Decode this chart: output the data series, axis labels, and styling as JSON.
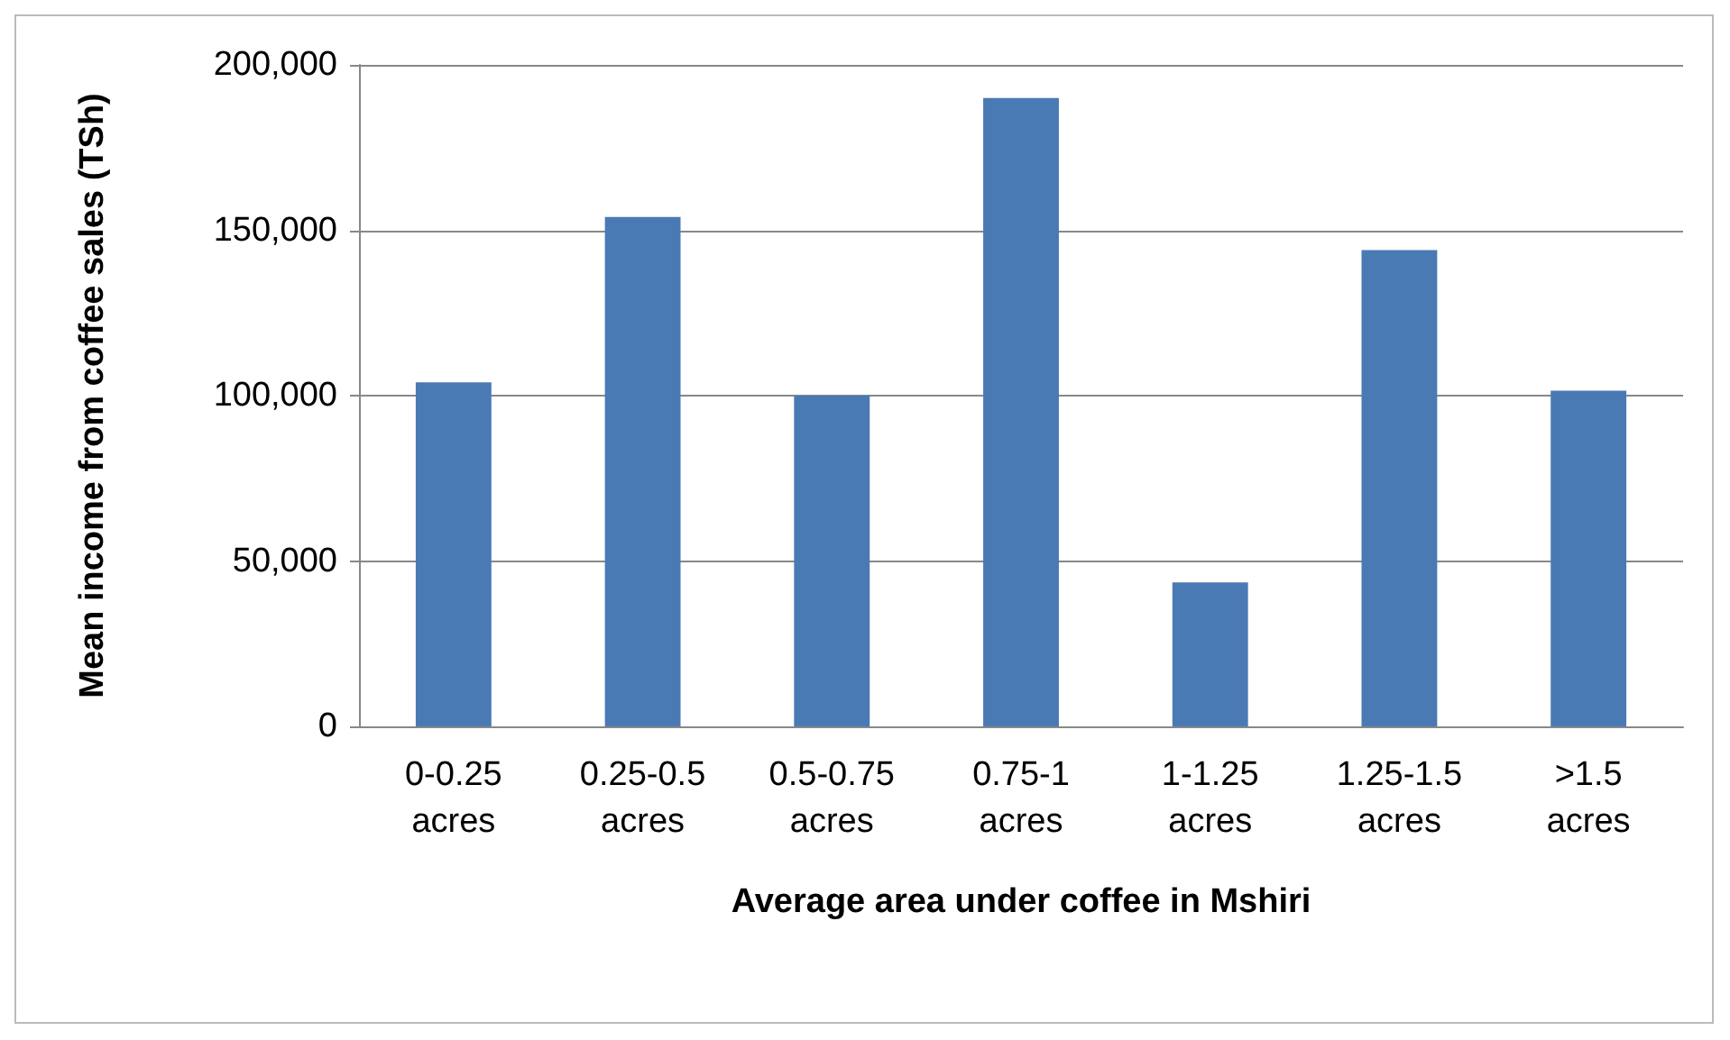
{
  "chart_data": {
    "type": "bar",
    "xlabel": "Average area under coffee in Mshiri",
    "ylabel": "Mean income from coffee sales (TSh)",
    "categories": [
      "0-0.25 acres",
      "0.25-0.5 acres",
      "0.5-0.75 acres",
      "0.75-1 acres",
      "1-1.25 acres",
      "1.25-1.5 acres",
      ">1.5 acres"
    ],
    "values": [
      104000,
      154000,
      100000,
      190000,
      43500,
      144000,
      101500
    ],
    "color": "#4a7ab4",
    "ylim": [
      0,
      200000
    ],
    "yticks": [
      0,
      {
        "value": 50000,
        "label": "50,000"
      },
      {
        "value": 100000,
        "label": "100,000"
      },
      {
        "value": 150000,
        "label": "150,000"
      },
      {
        "value": 200000,
        "label": "200,000"
      }
    ],
    "grid": "y"
  }
}
